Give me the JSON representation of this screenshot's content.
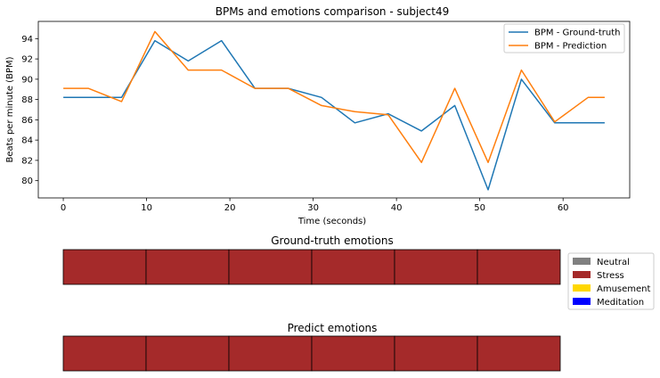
{
  "chart_data": [
    {
      "type": "line",
      "title": "BPMs and emotions comparison - subject49",
      "xlabel": "Time (seconds)",
      "ylabel": "Beats per minute (BPM)",
      "xlim": [
        -3,
        68
      ],
      "ylim": [
        78.3,
        95.7
      ],
      "xticks": [
        0,
        10,
        20,
        30,
        40,
        50,
        60
      ],
      "yticks": [
        80,
        82,
        84,
        86,
        88,
        90,
        92,
        94
      ],
      "grid": false,
      "legend_position": "top-right",
      "series": [
        {
          "name": "BPM - Ground-truth",
          "color": "#1f77b4",
          "x": [
            0,
            3,
            7,
            11,
            15,
            19,
            23,
            27,
            31,
            35,
            39,
            43,
            47,
            51,
            55,
            59,
            63,
            65
          ],
          "y": [
            88.2,
            88.2,
            88.2,
            93.8,
            91.8,
            93.8,
            89.1,
            89.1,
            88.2,
            85.7,
            86.6,
            84.9,
            87.4,
            79.1,
            90.0,
            85.7,
            85.7,
            85.7
          ]
        },
        {
          "name": "BPM - Prediction",
          "color": "#ff7f0e",
          "x": [
            0,
            3,
            7,
            11,
            15,
            19,
            23,
            27,
            31,
            35,
            39,
            43,
            47,
            51,
            55,
            59,
            63,
            65
          ],
          "y": [
            89.1,
            89.1,
            87.8,
            94.7,
            90.9,
            90.9,
            89.1,
            89.1,
            87.4,
            86.8,
            86.5,
            81.8,
            89.1,
            81.8,
            90.9,
            85.8,
            88.2,
            88.2
          ]
        }
      ]
    },
    {
      "type": "bar",
      "title": "Ground-truth emotions",
      "segments": [
        "Stress",
        "Stress",
        "Stress",
        "Stress",
        "Stress",
        "Stress"
      ]
    },
    {
      "type": "bar",
      "title": "Predict emotions",
      "segments": [
        "Stress",
        "Stress",
        "Stress",
        "Stress",
        "Stress",
        "Stress"
      ]
    }
  ],
  "emotion_legend": [
    {
      "label": "Neutral",
      "color": "#808080"
    },
    {
      "label": "Stress",
      "color": "#a52a2a"
    },
    {
      "label": "Amusement",
      "color": "#ffd700"
    },
    {
      "label": "Meditation",
      "color": "#0000ff"
    }
  ]
}
